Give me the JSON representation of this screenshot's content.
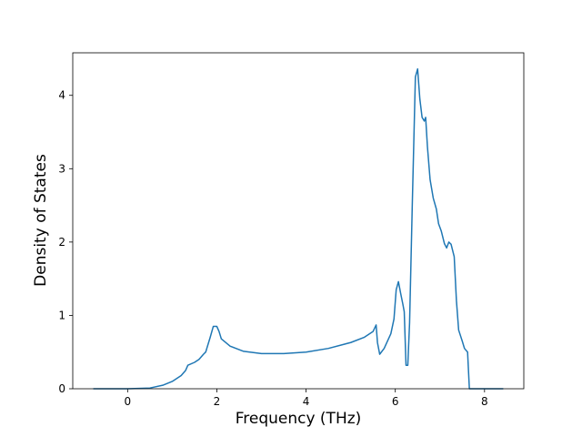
{
  "chart_data": {
    "type": "line",
    "xlabel": "Frequency (THz)",
    "ylabel": "Density of States",
    "x": [
      -0.77,
      0,
      0.5,
      0.8,
      1.0,
      1.2,
      1.3,
      1.35,
      1.5,
      1.6,
      1.7,
      1.75,
      1.85,
      1.92,
      2.0,
      2.05,
      2.1,
      2.3,
      2.6,
      3.0,
      3.5,
      4.0,
      4.5,
      5.0,
      5.3,
      5.5,
      5.57,
      5.6,
      5.65,
      5.75,
      5.9,
      5.97,
      6.02,
      6.07,
      6.12,
      6.17,
      6.2,
      6.24,
      6.28,
      6.32,
      6.38,
      6.45,
      6.5,
      6.55,
      6.6,
      6.65,
      6.68,
      6.72,
      6.78,
      6.85,
      6.92,
      6.97,
      7.03,
      7.1,
      7.15,
      7.2,
      7.25,
      7.32,
      7.37,
      7.42,
      7.5,
      7.55,
      7.62,
      7.66,
      8.0,
      8.42
    ],
    "values": [
      0,
      0,
      0.01,
      0.05,
      0.1,
      0.18,
      0.25,
      0.32,
      0.36,
      0.4,
      0.47,
      0.5,
      0.7,
      0.85,
      0.85,
      0.78,
      0.68,
      0.58,
      0.51,
      0.48,
      0.48,
      0.5,
      0.55,
      0.63,
      0.7,
      0.78,
      0.87,
      0.63,
      0.47,
      0.55,
      0.75,
      0.95,
      1.35,
      1.46,
      1.3,
      1.15,
      1.05,
      0.32,
      0.32,
      0.9,
      2.5,
      4.25,
      4.36,
      3.95,
      3.7,
      3.65,
      3.7,
      3.3,
      2.85,
      2.6,
      2.45,
      2.25,
      2.15,
      1.98,
      1.92,
      2.0,
      1.97,
      1.8,
      1.2,
      0.8,
      0.65,
      0.55,
      0.5,
      0.0,
      0,
      0
    ],
    "color": "#1f77b4",
    "xlim": [
      -1.23,
      8.88
    ],
    "xticks": [
      0,
      2,
      4,
      6,
      8
    ],
    "ylim": [
      0,
      4.58
    ],
    "yticks": [
      0,
      1,
      2,
      3,
      4
    ],
    "grid": false
  }
}
